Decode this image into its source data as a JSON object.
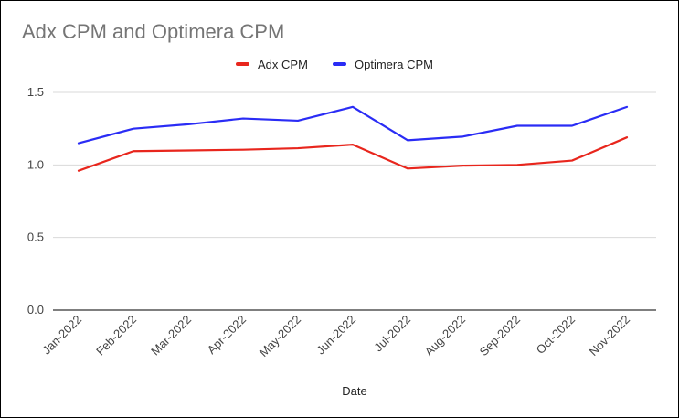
{
  "chart_data": {
    "type": "line",
    "title": "Adx CPM and Optimera CPM",
    "xlabel": "Date",
    "ylabel": "",
    "categories": [
      "Jan-2022",
      "Feb-2022",
      "Mar-2022",
      "Apr-2022",
      "May-2022",
      "Jun-2022",
      "Jul-2022",
      "Aug-2022",
      "Sep-2022",
      "Oct-2022",
      "Nov-2022"
    ],
    "series": [
      {
        "name": "Adx CPM",
        "color": "#e8261d",
        "values": [
          0.96,
          1.095,
          1.1,
          1.105,
          1.115,
          1.14,
          0.975,
          0.995,
          1.0,
          1.03,
          1.19
        ]
      },
      {
        "name": "Optimera CPM",
        "color": "#2a2cf5",
        "values": [
          1.15,
          1.25,
          1.28,
          1.32,
          1.305,
          1.4,
          1.17,
          1.195,
          1.27,
          1.27,
          1.4
        ]
      }
    ],
    "yticks": [
      "0.0",
      "0.5",
      "1.0",
      "1.5"
    ],
    "ylim": [
      0,
      1.5
    ],
    "grid": true,
    "legend_position": "top"
  }
}
